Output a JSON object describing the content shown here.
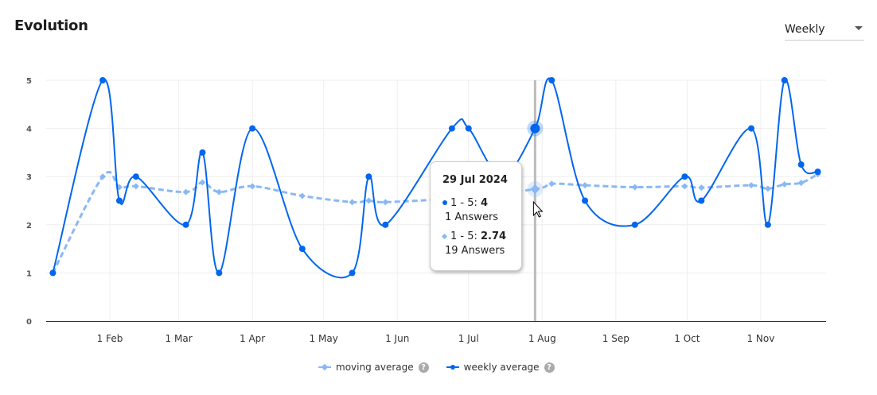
{
  "header": {
    "title": "Evolution",
    "period_select": "Weekly"
  },
  "chart_data": {
    "type": "line",
    "ylim": [
      0,
      5
    ],
    "yticks": [
      "0",
      "1",
      "2",
      "3",
      "4",
      "5"
    ],
    "xticks": [
      {
        "date": "2024-02-01",
        "label": "1 Feb"
      },
      {
        "date": "2024-03-01",
        "label": "1 Mar"
      },
      {
        "date": "2024-04-01",
        "label": "1 Apr"
      },
      {
        "date": "2024-05-01",
        "label": "1 May"
      },
      {
        "date": "2024-06-01",
        "label": "1 Jun"
      },
      {
        "date": "2024-07-01",
        "label": "1 Jul"
      },
      {
        "date": "2024-08-01",
        "label": "1 Aug"
      },
      {
        "date": "2024-09-01",
        "label": "1 Sep"
      },
      {
        "date": "2024-10-01",
        "label": "1 Oct"
      },
      {
        "date": "2024-11-01",
        "label": "1 Nov"
      }
    ],
    "series": [
      {
        "name": "moving average",
        "color": "#8ab8f5",
        "dash": true,
        "points": [
          [
            "2024-01-08",
            1
          ],
          [
            "2024-01-29",
            3
          ],
          [
            "2024-02-05",
            2.78
          ],
          [
            "2024-02-12",
            2.8
          ],
          [
            "2024-03-04",
            2.68
          ],
          [
            "2024-03-11",
            2.88
          ],
          [
            "2024-03-18",
            2.68
          ],
          [
            "2024-04-01",
            2.8
          ],
          [
            "2024-04-22",
            2.6
          ],
          [
            "2024-05-13",
            2.47
          ],
          [
            "2024-05-20",
            2.5
          ],
          [
            "2024-05-27",
            2.47
          ],
          [
            "2024-06-24",
            2.55
          ],
          [
            "2024-07-29",
            2.74
          ],
          [
            "2024-08-05",
            2.85
          ],
          [
            "2024-08-19",
            2.82
          ],
          [
            "2024-09-09",
            2.78
          ],
          [
            "2024-09-30",
            2.8
          ],
          [
            "2024-10-07",
            2.77
          ],
          [
            "2024-10-28",
            2.82
          ],
          [
            "2024-11-04",
            2.75
          ],
          [
            "2024-11-11",
            2.84
          ],
          [
            "2024-11-18",
            2.87
          ],
          [
            "2024-11-25",
            3.05
          ]
        ]
      },
      {
        "name": "weekly average",
        "color": "#0066ee",
        "dash": false,
        "points": [
          [
            "2024-01-08",
            1
          ],
          [
            "2024-01-29",
            5
          ],
          [
            "2024-02-05",
            2.5
          ],
          [
            "2024-02-12",
            3
          ],
          [
            "2024-03-04",
            2
          ],
          [
            "2024-03-11",
            3.5
          ],
          [
            "2024-03-18",
            1
          ],
          [
            "2024-04-01",
            4
          ],
          [
            "2024-04-22",
            1.5
          ],
          [
            "2024-05-13",
            1
          ],
          [
            "2024-05-20",
            3
          ],
          [
            "2024-05-27",
            2
          ],
          [
            "2024-06-24",
            4
          ],
          [
            "2024-07-01",
            4
          ],
          [
            "2024-07-15",
            3
          ],
          [
            "2024-07-29",
            4
          ],
          [
            "2024-08-05",
            5
          ],
          [
            "2024-08-19",
            2.5
          ],
          [
            "2024-09-09",
            2
          ],
          [
            "2024-09-30",
            3
          ],
          [
            "2024-10-07",
            2.5
          ],
          [
            "2024-10-28",
            4
          ],
          [
            "2024-11-04",
            2
          ],
          [
            "2024-11-11",
            5
          ],
          [
            "2024-11-18",
            3.25
          ],
          [
            "2024-11-25",
            3.1
          ]
        ]
      }
    ],
    "hover_date": "2024-07-29"
  },
  "tooltip": {
    "date": "29 Jul 2024",
    "weekly_label": "1 - 5: ",
    "weekly_value": "4",
    "weekly_count": "1 Answers",
    "moving_label": "1 - 5: ",
    "moving_value": "2.74",
    "moving_count": "19 Answers"
  },
  "legend": {
    "moving": "moving average",
    "weekly": "weekly average",
    "help": "?"
  }
}
